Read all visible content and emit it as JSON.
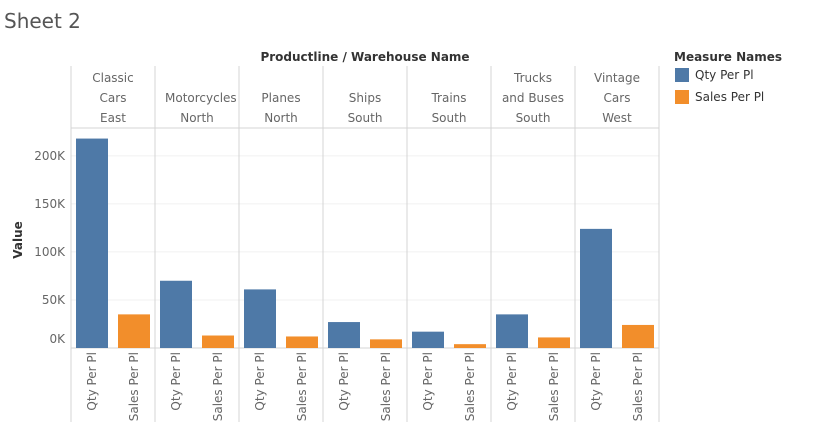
{
  "chart_data": {
    "type": "bar",
    "title": "Sheet 2",
    "header_title": "Productline / Warehouse Name",
    "categories": [
      "Classic Cars",
      "Motorcycles",
      "Planes",
      "Ships",
      "Trains",
      "Trucks and Buses",
      "Vintage Cars"
    ],
    "warehouses": [
      "East",
      "North",
      "North",
      "South",
      "South",
      "South",
      "West"
    ],
    "y_label": "Value",
    "legend_title": "Measure Names",
    "series": [
      {
        "name": "Qty Per Pl",
        "color": "#4e79a7",
        "values": [
          218000,
          70000,
          61000,
          27000,
          17000,
          35000,
          124000
        ]
      },
      {
        "name": "Sales Per Pl",
        "color": "#f28e2b",
        "values": [
          35000,
          13000,
          12000,
          9000,
          4000,
          11000,
          24000
        ]
      }
    ],
    "ylim": [
      0,
      229000
    ],
    "yticks": [
      {
        "value": 0,
        "label": "0K"
      },
      {
        "value": 50000,
        "label": "50K"
      },
      {
        "value": 100000,
        "label": "100K"
      },
      {
        "value": 150000,
        "label": "150K"
      },
      {
        "value": 200000,
        "label": "200K"
      }
    ],
    "grid": true
  }
}
